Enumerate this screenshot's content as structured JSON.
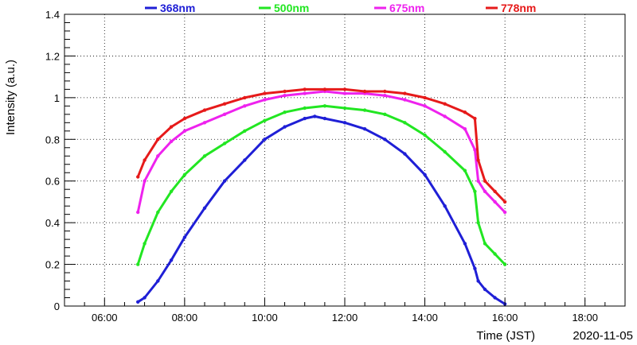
{
  "chart_data": {
    "type": "scatter",
    "xlabel": "Time (JST)",
    "ylabel": "Intensity (a.u.)",
    "date_label": "2020-11-05",
    "xlim": [
      "05:00",
      "19:00"
    ],
    "ylim": [
      0,
      1.4
    ],
    "xticks": [
      "06:00",
      "08:00",
      "10:00",
      "12:00",
      "14:00",
      "16:00",
      "18:00"
    ],
    "yticks": [
      "0",
      "0.2",
      "0.4",
      "0.6",
      "0.8",
      "1",
      "1.2",
      "1.4"
    ],
    "grid": true,
    "legend_position": "top",
    "series": [
      {
        "name": "368nm",
        "color": "#1f1fd6",
        "x": [
          "06:50",
          "07:00",
          "07:20",
          "07:40",
          "08:00",
          "08:30",
          "09:00",
          "09:30",
          "10:00",
          "10:30",
          "11:00",
          "11:15",
          "11:30",
          "12:00",
          "12:30",
          "13:00",
          "13:30",
          "14:00",
          "14:30",
          "15:00",
          "15:15",
          "15:20",
          "15:30",
          "15:45",
          "16:00"
        ],
        "y": [
          0.02,
          0.04,
          0.12,
          0.22,
          0.33,
          0.47,
          0.6,
          0.7,
          0.8,
          0.86,
          0.9,
          0.91,
          0.9,
          0.88,
          0.85,
          0.8,
          0.73,
          0.63,
          0.48,
          0.3,
          0.18,
          0.12,
          0.08,
          0.04,
          0.01
        ]
      },
      {
        "name": "500nm",
        "color": "#22e622",
        "x": [
          "06:50",
          "07:00",
          "07:20",
          "07:40",
          "08:00",
          "08:30",
          "09:00",
          "09:30",
          "10:00",
          "10:30",
          "11:00",
          "11:30",
          "12:00",
          "12:30",
          "13:00",
          "13:30",
          "14:00",
          "14:30",
          "15:00",
          "15:15",
          "15:20",
          "15:30",
          "15:45",
          "16:00"
        ],
        "y": [
          0.2,
          0.3,
          0.45,
          0.55,
          0.63,
          0.72,
          0.78,
          0.84,
          0.89,
          0.93,
          0.95,
          0.96,
          0.95,
          0.94,
          0.92,
          0.88,
          0.82,
          0.74,
          0.65,
          0.55,
          0.4,
          0.3,
          0.25,
          0.2
        ]
      },
      {
        "name": "675nm",
        "color": "#ee22ee",
        "x": [
          "06:50",
          "07:00",
          "07:20",
          "07:40",
          "08:00",
          "08:30",
          "09:00",
          "09:30",
          "10:00",
          "10:30",
          "11:00",
          "11:30",
          "12:00",
          "12:30",
          "13:00",
          "13:30",
          "14:00",
          "14:30",
          "15:00",
          "15:15",
          "15:20",
          "15:30",
          "15:45",
          "16:00"
        ],
        "y": [
          0.45,
          0.6,
          0.72,
          0.79,
          0.84,
          0.88,
          0.92,
          0.96,
          0.99,
          1.01,
          1.02,
          1.03,
          1.02,
          1.02,
          1.01,
          0.99,
          0.96,
          0.91,
          0.85,
          0.75,
          0.6,
          0.55,
          0.5,
          0.45
        ]
      },
      {
        "name": "778nm",
        "color": "#e61a1a",
        "x": [
          "06:50",
          "07:00",
          "07:20",
          "07:40",
          "08:00",
          "08:30",
          "09:00",
          "09:30",
          "10:00",
          "10:30",
          "11:00",
          "11:30",
          "12:00",
          "12:30",
          "13:00",
          "13:30",
          "14:00",
          "14:30",
          "15:00",
          "15:15",
          "15:20",
          "15:30",
          "15:45",
          "16:00"
        ],
        "y": [
          0.62,
          0.7,
          0.8,
          0.86,
          0.9,
          0.94,
          0.97,
          1.0,
          1.02,
          1.03,
          1.04,
          1.04,
          1.04,
          1.03,
          1.03,
          1.02,
          1.0,
          0.97,
          0.93,
          0.9,
          0.7,
          0.6,
          0.55,
          0.5
        ]
      }
    ]
  }
}
